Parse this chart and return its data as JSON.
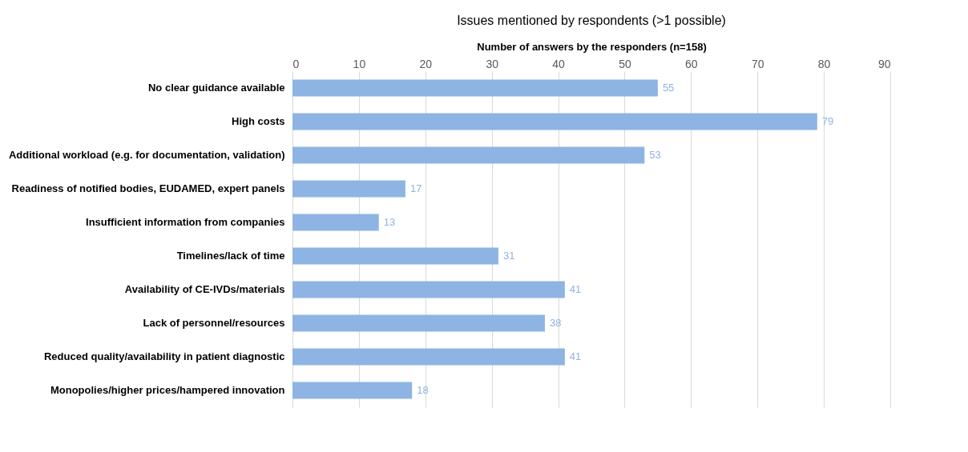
{
  "chart_data": {
    "type": "bar",
    "orientation": "horizontal",
    "title": "Issues mentioned by respondents (>1 possible)",
    "xlabel": "Number of answers by the responders (n=158)",
    "categories": [
      "No clear guidance available",
      "High costs",
      "Additional workload (e.g. for documentation, validation)",
      "Readiness of notified bodies, EUDAMED, expert panels",
      "Insufficient information from companies",
      "Timelines/lack of time",
      "Availability of CE-IVDs/materials",
      "Lack of personnel/resources",
      "Reduced quality/availability in patient diagnostic",
      "Monopolies/higher prices/hampered innovation"
    ],
    "values": [
      55,
      79,
      53,
      17,
      13,
      31,
      41,
      38,
      41,
      18
    ],
    "color": "#8eb4e3",
    "xlim": [
      0,
      90
    ],
    "xticks": [
      0,
      10,
      20,
      30,
      40,
      50,
      60,
      70,
      80,
      90
    ],
    "grid": "x",
    "data_labels": true
  }
}
